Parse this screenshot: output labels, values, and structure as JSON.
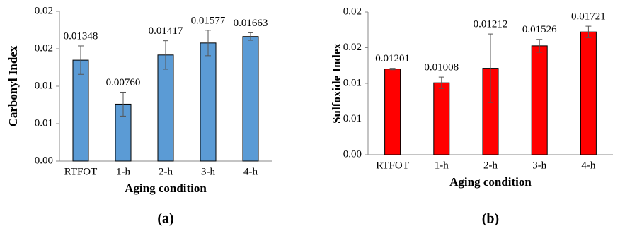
{
  "chart_data": [
    {
      "type": "bar",
      "label": "(a)",
      "xlabel": "Aging condition",
      "ylabel": "Carbonyl Index",
      "categories": [
        "RTFOT",
        "1-h",
        "2-h",
        "3-h",
        "4-h"
      ],
      "values": [
        0.01348,
        0.0076,
        0.01417,
        0.01577,
        0.01663
      ],
      "value_labels": [
        "0.01348",
        "0.00760",
        "0.01417",
        "0.01577",
        "0.01663"
      ],
      "errors": [
        0.0019,
        0.0016,
        0.0019,
        0.0017,
        0.0005
      ],
      "color": "#5b9bd5",
      "ylim": [
        0,
        0.02
      ],
      "yticks": [
        {
          "value": 0,
          "label": "0.00"
        },
        {
          "value": 0.005,
          "label": "0.01"
        },
        {
          "value": 0.01,
          "label": "0.01"
        },
        {
          "value": 0.015,
          "label": "0.02"
        },
        0.02
      ]
    },
    {
      "type": "bar",
      "label": "(b)",
      "xlabel": "Aging condition",
      "ylabel": "Sulfoxide Index",
      "categories": [
        "RTFOT",
        "1-h",
        "2-h",
        "3-h",
        "4-h"
      ],
      "values": [
        0.01201,
        0.01008,
        0.01212,
        0.01526,
        0.01721
      ],
      "value_labels": [
        "0.01201",
        "0.01008",
        "0.01212",
        "0.01526",
        "0.01721"
      ],
      "errors": [
        0.0001,
        0.0008,
        0.0048,
        0.0009,
        0.0008
      ],
      "color": "#ff0000",
      "ylim": [
        0,
        0.02
      ],
      "yticks": [
        {
          "value": 0,
          "label": "0.00"
        },
        {
          "value": 0.005,
          "label": "0.01"
        },
        {
          "value": 0.01,
          "label": "0.01"
        },
        {
          "value": 0.015,
          "label": "0.02"
        },
        0.02
      ]
    }
  ]
}
